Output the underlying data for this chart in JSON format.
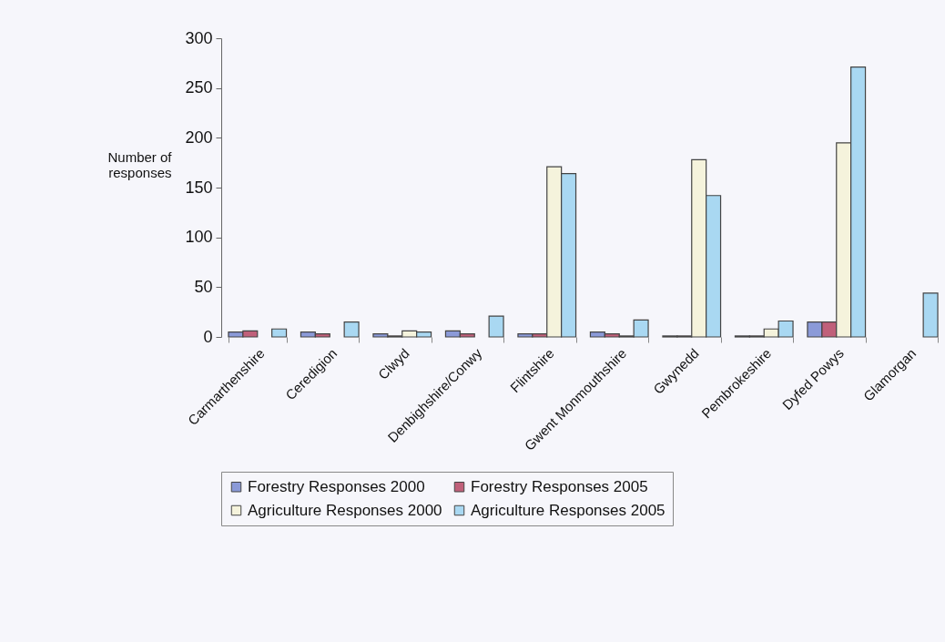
{
  "chart_data": {
    "type": "bar",
    "ylabel": "Number of\nresponses",
    "categories": [
      "Carmarthenshire",
      "Ceredigion",
      "Clwyd",
      "Denbighshire/Conwy",
      "Flintshire",
      "Gwent Monmouthshire",
      "Gwynedd",
      "Pembrokeshire",
      "Dyfed Powys",
      "Glamorgan"
    ],
    "series": [
      {
        "name": "Forestry Responses 2000",
        "color": "#8b9ad8",
        "values": [
          5,
          5,
          3,
          6,
          3,
          5,
          1,
          1,
          15,
          null
        ]
      },
      {
        "name": "Forestry Responses 2005",
        "color": "#c0607a",
        "values": [
          6,
          3,
          1,
          3,
          3,
          3,
          1,
          1,
          15,
          null
        ]
      },
      {
        "name": "Agriculture Responses 2000",
        "color": "#f5f3dc",
        "values": [
          null,
          null,
          6,
          null,
          171,
          1,
          178,
          8,
          195,
          null
        ]
      },
      {
        "name": "Agriculture Responses 2005",
        "color": "#a9d8f2",
        "values": [
          8,
          15,
          5,
          21,
          164,
          17,
          142,
          16,
          271,
          44
        ]
      }
    ],
    "ylim": [
      0,
      300
    ],
    "yticks": [
      0,
      50,
      100,
      150,
      200,
      250,
      300
    ],
    "grid": false,
    "legend": "bottom"
  }
}
